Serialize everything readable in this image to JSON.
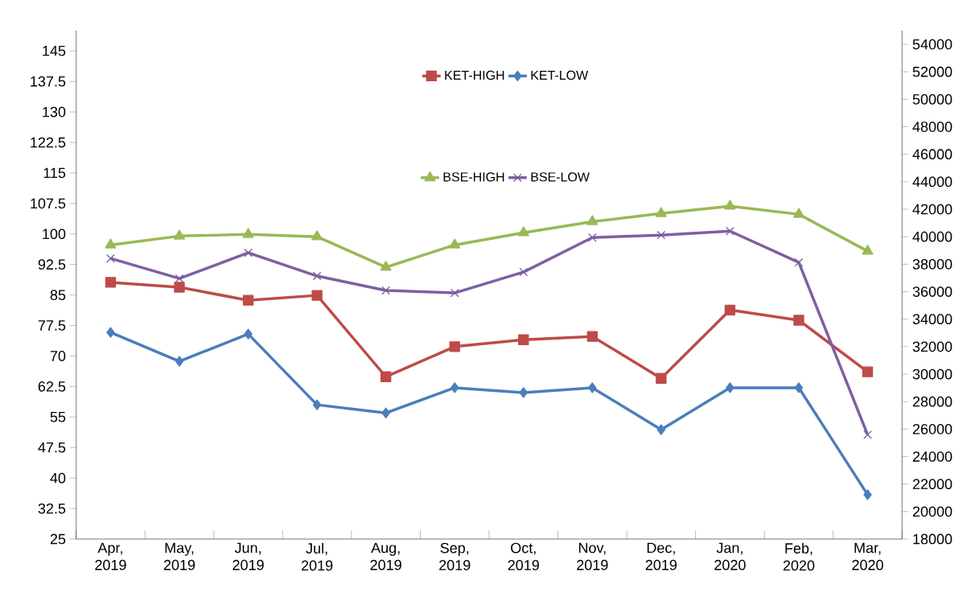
{
  "chart_data": {
    "type": "line",
    "categories": [
      "Apr, 2019",
      "May, 2019",
      "Jun, 2019",
      "Jul, 2019",
      "Aug, 2019",
      "Sep, 2019",
      "Oct, 2019",
      "Nov, 2019",
      "Dec, 2019",
      "Jan, 2020",
      "Feb, 2020",
      "Mar, 2020"
    ],
    "series": [
      {
        "name": "KET-HIGH",
        "color": "#be4b48",
        "marker": "square",
        "values": [
          88.1,
          86.9,
          83.7,
          84.9,
          64.9,
          72.3,
          74.0,
          74.8,
          64.5,
          81.3,
          78.8,
          66.1
        ]
      },
      {
        "name": "KET-LOW",
        "color": "#4a7ebb",
        "marker": "diamond",
        "values": [
          75.8,
          68.7,
          75.4,
          58.0,
          56.0,
          62.2,
          61.0,
          62.2,
          51.9,
          62.2,
          62.2,
          35.9
        ]
      },
      {
        "name": "BSE-HIGH",
        "color": "#98b954",
        "marker": "triangle",
        "axis": "y2",
        "values": [
          39400,
          40050,
          40170,
          40000,
          37780,
          39400,
          40290,
          41100,
          41690,
          42220,
          41630,
          38950
        ]
      },
      {
        "name": "BSE-LOW",
        "color": "#7d60a0",
        "marker": "cross",
        "axis": "y2",
        "values": [
          38420,
          36960,
          38830,
          37140,
          36090,
          35910,
          37430,
          39940,
          40120,
          40410,
          38130,
          25590
        ]
      }
    ],
    "ylim": [
      25,
      150
    ],
    "yticks": [
      25,
      32.5,
      40,
      47.5,
      55,
      62.5,
      70,
      77.5,
      85,
      92.5,
      100,
      107.5,
      115,
      122.5,
      130,
      137.5,
      145
    ],
    "y2lim": [
      18000,
      55000
    ],
    "y2ticks": [
      18000,
      20000,
      22000,
      24000,
      26000,
      28000,
      30000,
      32000,
      34000,
      36000,
      38000,
      40000,
      42000,
      44000,
      46000,
      48000,
      50000,
      52000,
      54000
    ],
    "legend": "top",
    "line_style": "solid",
    "grid": false
  }
}
